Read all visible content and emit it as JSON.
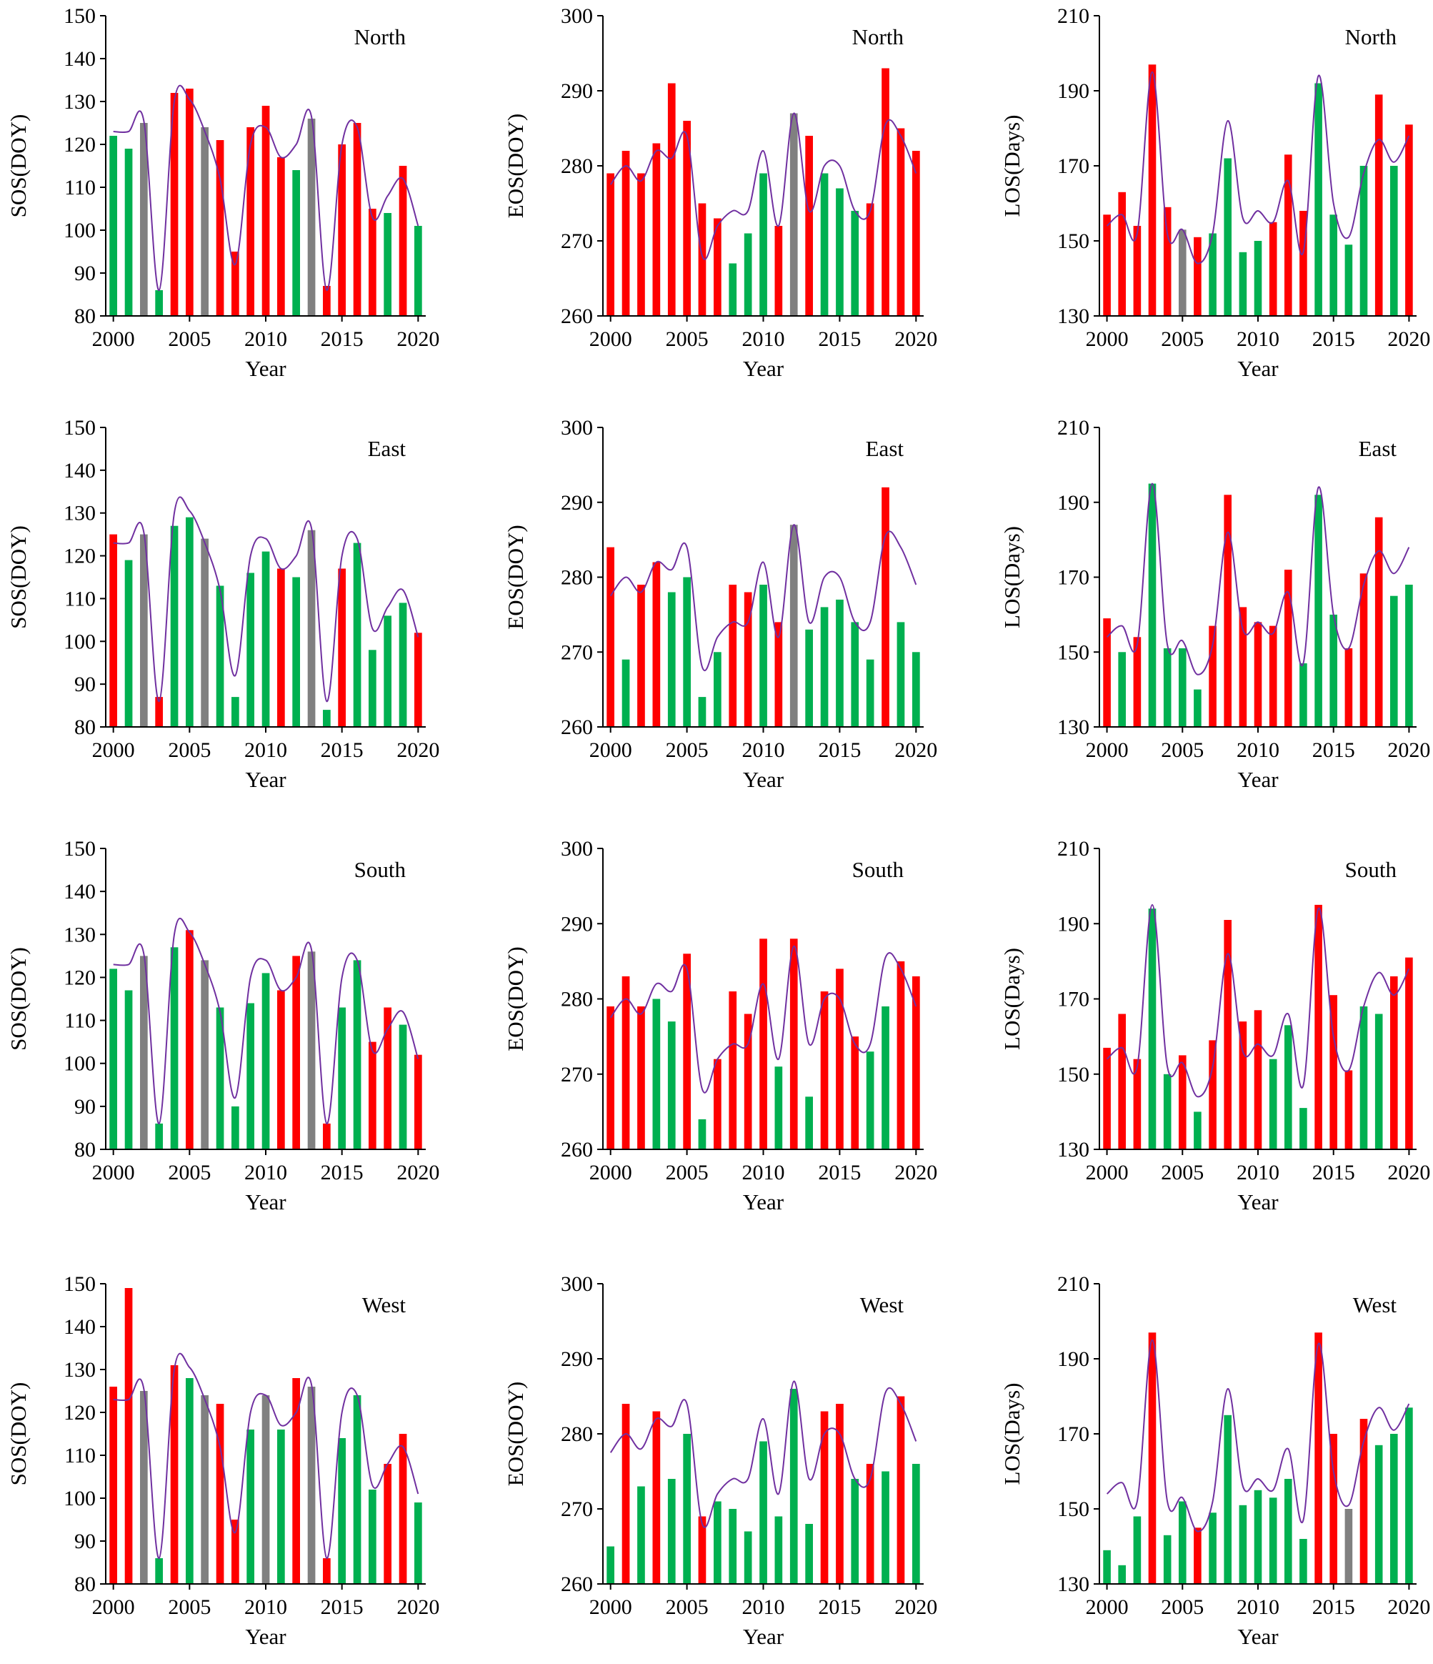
{
  "colors": {
    "red": "#ff0000",
    "green": "#00b050",
    "gray": "#808080",
    "trend": "#7030a0"
  },
  "chart_data": [
    {
      "type": "bar",
      "title": "North",
      "xlabel": "Year",
      "ylabel": "SOS(DOY)",
      "ylim": [
        80,
        150
      ],
      "yticks": [
        80,
        90,
        100,
        110,
        120,
        130,
        140,
        150
      ],
      "xticks": [
        2000,
        2005,
        2010,
        2015,
        2020
      ],
      "categories": [
        2000,
        2001,
        2002,
        2003,
        2004,
        2005,
        2006,
        2007,
        2008,
        2009,
        2010,
        2011,
        2012,
        2013,
        2014,
        2015,
        2016,
        2017,
        2018,
        2019,
        2020
      ],
      "values": [
        122,
        119,
        125,
        86,
        132,
        133,
        124,
        121,
        95,
        124,
        129,
        117,
        114,
        126,
        87,
        120,
        125,
        105,
        104,
        115,
        101
      ],
      "colors": [
        "g",
        "g",
        "k",
        "g",
        "r",
        "r",
        "k",
        "r",
        "r",
        "r",
        "r",
        "r",
        "g",
        "k",
        "r",
        "r",
        "r",
        "r",
        "g",
        "r",
        "g"
      ],
      "trend": [
        123,
        123,
        125.5,
        86,
        130,
        130.5,
        123,
        112,
        92,
        120,
        124,
        117,
        120,
        126.5,
        86,
        120,
        124,
        103,
        108,
        112,
        101
      ]
    },
    {
      "type": "bar",
      "title": "North",
      "xlabel": "Year",
      "ylabel": "EOS(DOY)",
      "ylim": [
        260,
        300
      ],
      "yticks": [
        260,
        270,
        280,
        290,
        300
      ],
      "xticks": [
        2000,
        2005,
        2010,
        2015,
        2020
      ],
      "categories": [
        2000,
        2001,
        2002,
        2003,
        2004,
        2005,
        2006,
        2007,
        2008,
        2009,
        2010,
        2011,
        2012,
        2013,
        2014,
        2015,
        2016,
        2017,
        2018,
        2019,
        2020
      ],
      "values": [
        279,
        282,
        279,
        283,
        291,
        286,
        275,
        273,
        267,
        271,
        279,
        272,
        287,
        284,
        279,
        277,
        274,
        275,
        293,
        285,
        282
      ],
      "colors": [
        "r",
        "r",
        "r",
        "r",
        "r",
        "r",
        "r",
        "r",
        "g",
        "g",
        "g",
        "r",
        "k",
        "r",
        "g",
        "g",
        "g",
        "r",
        "r",
        "r",
        "r"
      ],
      "trend": [
        277.5,
        280,
        278,
        282,
        281,
        284,
        268,
        272,
        274,
        274,
        282,
        272,
        287,
        274,
        280,
        280,
        274,
        274,
        285.5,
        284,
        279
      ]
    },
    {
      "type": "bar",
      "title": "North",
      "xlabel": "Year",
      "ylabel": "LOS(Days)",
      "ylim": [
        130,
        210
      ],
      "yticks": [
        130,
        150,
        170,
        190,
        210
      ],
      "xticks": [
        2000,
        2005,
        2010,
        2015,
        2020
      ],
      "categories": [
        2000,
        2001,
        2002,
        2003,
        2004,
        2005,
        2006,
        2007,
        2008,
        2009,
        2010,
        2011,
        2012,
        2013,
        2014,
        2015,
        2016,
        2017,
        2018,
        2019,
        2020
      ],
      "values": [
        157,
        163,
        154,
        197,
        159,
        153,
        151,
        152,
        172,
        147,
        150,
        155,
        173,
        158,
        192,
        157,
        149,
        170,
        189,
        170,
        181
      ],
      "colors": [
        "r",
        "r",
        "r",
        "r",
        "r",
        "k",
        "r",
        "g",
        "g",
        "g",
        "g",
        "r",
        "r",
        "r",
        "g",
        "g",
        "g",
        "g",
        "r",
        "g",
        "r"
      ],
      "trend": [
        154,
        157,
        152,
        195,
        152,
        153,
        144,
        152,
        182,
        156,
        158,
        155,
        166,
        147,
        194,
        160,
        151,
        168,
        177,
        171,
        178
      ]
    },
    {
      "type": "bar",
      "title": "East",
      "xlabel": "Year",
      "ylabel": "SOS(DOY)",
      "ylim": [
        80,
        150
      ],
      "yticks": [
        80,
        90,
        100,
        110,
        120,
        130,
        140,
        150
      ],
      "xticks": [
        2000,
        2005,
        2010,
        2015,
        2020
      ],
      "categories": [
        2000,
        2001,
        2002,
        2003,
        2004,
        2005,
        2006,
        2007,
        2008,
        2009,
        2010,
        2011,
        2012,
        2013,
        2014,
        2015,
        2016,
        2017,
        2018,
        2019,
        2020
      ],
      "values": [
        125,
        119,
        125,
        87,
        127,
        129,
        124,
        113,
        87,
        116,
        121,
        117,
        115,
        126,
        84,
        117,
        123,
        98,
        106,
        109,
        102
      ],
      "colors": [
        "r",
        "g",
        "k",
        "r",
        "g",
        "g",
        "k",
        "g",
        "g",
        "g",
        "g",
        "r",
        "g",
        "k",
        "g",
        "r",
        "g",
        "g",
        "g",
        "g",
        "r"
      ],
      "trend": [
        123,
        123,
        125.5,
        86,
        130,
        130.5,
        123,
        112,
        92,
        120,
        124,
        117,
        120,
        126.5,
        86,
        120,
        124,
        103,
        108,
        112,
        101
      ]
    },
    {
      "type": "bar",
      "title": "East",
      "xlabel": "Year",
      "ylabel": "EOS(DOY)",
      "ylim": [
        260,
        300
      ],
      "yticks": [
        260,
        270,
        280,
        290,
        300
      ],
      "xticks": [
        2000,
        2005,
        2010,
        2015,
        2020
      ],
      "categories": [
        2000,
        2001,
        2002,
        2003,
        2004,
        2005,
        2006,
        2007,
        2008,
        2009,
        2010,
        2011,
        2012,
        2013,
        2014,
        2015,
        2016,
        2017,
        2018,
        2019,
        2020
      ],
      "values": [
        284,
        269,
        279,
        282,
        278,
        280,
        264,
        270,
        279,
        278,
        279,
        274,
        287,
        273,
        276,
        277,
        274,
        269,
        292,
        274,
        270
      ],
      "colors": [
        "r",
        "g",
        "r",
        "r",
        "g",
        "g",
        "g",
        "g",
        "r",
        "r",
        "g",
        "r",
        "k",
        "g",
        "g",
        "g",
        "g",
        "g",
        "r",
        "g",
        "g"
      ],
      "trend": [
        277.5,
        280,
        278,
        282,
        281,
        284,
        268,
        272,
        274,
        274,
        282,
        272,
        287,
        274,
        280,
        280,
        274,
        274,
        285.5,
        284,
        279
      ]
    },
    {
      "type": "bar",
      "title": "East",
      "xlabel": "Year",
      "ylabel": "LOS(Days)",
      "ylim": [
        130,
        210
      ],
      "yticks": [
        130,
        150,
        170,
        190,
        210
      ],
      "xticks": [
        2000,
        2005,
        2010,
        2015,
        2020
      ],
      "categories": [
        2000,
        2001,
        2002,
        2003,
        2004,
        2005,
        2006,
        2007,
        2008,
        2009,
        2010,
        2011,
        2012,
        2013,
        2014,
        2015,
        2016,
        2017,
        2018,
        2019,
        2020
      ],
      "values": [
        159,
        150,
        154,
        195,
        151,
        151,
        140,
        157,
        192,
        162,
        158,
        157,
        172,
        147,
        192,
        160,
        151,
        171,
        186,
        165,
        168
      ],
      "colors": [
        "r",
        "g",
        "r",
        "g",
        "g",
        "g",
        "g",
        "r",
        "r",
        "r",
        "r",
        "r",
        "r",
        "g",
        "g",
        "g",
        "r",
        "r",
        "r",
        "g",
        "g"
      ],
      "trend": [
        154,
        157,
        152,
        195,
        152,
        153,
        144,
        152,
        182,
        156,
        158,
        155,
        166,
        147,
        194,
        160,
        151,
        168,
        177,
        171,
        178
      ]
    },
    {
      "type": "bar",
      "title": "South",
      "xlabel": "Year",
      "ylabel": "SOS(DOY)",
      "ylim": [
        80,
        150
      ],
      "yticks": [
        80,
        90,
        100,
        110,
        120,
        130,
        140,
        150
      ],
      "xticks": [
        2000,
        2005,
        2010,
        2015,
        2020
      ],
      "categories": [
        2000,
        2001,
        2002,
        2003,
        2004,
        2005,
        2006,
        2007,
        2008,
        2009,
        2010,
        2011,
        2012,
        2013,
        2014,
        2015,
        2016,
        2017,
        2018,
        2019,
        2020
      ],
      "values": [
        122,
        117,
        125,
        86,
        127,
        131,
        124,
        113,
        90,
        114,
        121,
        117,
        125,
        126,
        86,
        113,
        124,
        105,
        113,
        109,
        102
      ],
      "colors": [
        "g",
        "g",
        "k",
        "g",
        "g",
        "r",
        "k",
        "g",
        "g",
        "g",
        "g",
        "r",
        "r",
        "k",
        "r",
        "g",
        "g",
        "r",
        "r",
        "g",
        "r"
      ],
      "trend": [
        123,
        123,
        125.5,
        86,
        130,
        130.5,
        123,
        112,
        92,
        120,
        124,
        117,
        120,
        126.5,
        86,
        120,
        124,
        103,
        108,
        112,
        101
      ]
    },
    {
      "type": "bar",
      "title": "South",
      "xlabel": "Year",
      "ylabel": "EOS(DOY)",
      "ylim": [
        260,
        300
      ],
      "yticks": [
        260,
        270,
        280,
        290,
        300
      ],
      "xticks": [
        2000,
        2005,
        2010,
        2015,
        2020
      ],
      "categories": [
        2000,
        2001,
        2002,
        2003,
        2004,
        2005,
        2006,
        2007,
        2008,
        2009,
        2010,
        2011,
        2012,
        2013,
        2014,
        2015,
        2016,
        2017,
        2018,
        2019,
        2020
      ],
      "values": [
        279,
        283,
        279,
        280,
        277,
        286,
        264,
        272,
        281,
        278,
        288,
        271,
        288,
        267,
        281,
        284,
        275,
        273,
        279,
        285,
        283
      ],
      "colors": [
        "r",
        "r",
        "r",
        "g",
        "g",
        "r",
        "g",
        "r",
        "r",
        "r",
        "r",
        "g",
        "r",
        "g",
        "r",
        "r",
        "r",
        "g",
        "g",
        "r",
        "r"
      ],
      "trend": [
        277.5,
        280,
        278,
        282,
        281,
        284,
        268,
        272,
        274,
        274,
        282,
        272,
        287,
        274,
        280,
        280,
        274,
        274,
        285.5,
        284,
        279
      ]
    },
    {
      "type": "bar",
      "title": "South",
      "xlabel": "Year",
      "ylabel": "LOS(Days)",
      "ylim": [
        130,
        210
      ],
      "yticks": [
        130,
        150,
        170,
        190,
        210
      ],
      "xticks": [
        2000,
        2005,
        2010,
        2015,
        2020
      ],
      "categories": [
        2000,
        2001,
        2002,
        2003,
        2004,
        2005,
        2006,
        2007,
        2008,
        2009,
        2010,
        2011,
        2012,
        2013,
        2014,
        2015,
        2016,
        2017,
        2018,
        2019,
        2020
      ],
      "values": [
        157,
        166,
        154,
        194,
        150,
        155,
        140,
        159,
        191,
        164,
        167,
        154,
        163,
        141,
        195,
        171,
        151,
        168,
        166,
        176,
        181
      ],
      "colors": [
        "r",
        "r",
        "r",
        "g",
        "g",
        "r",
        "g",
        "r",
        "r",
        "r",
        "r",
        "g",
        "g",
        "g",
        "r",
        "r",
        "r",
        "g",
        "g",
        "r",
        "r"
      ],
      "trend": [
        154,
        157,
        152,
        195,
        152,
        153,
        144,
        152,
        182,
        156,
        158,
        155,
        166,
        147,
        194,
        160,
        151,
        168,
        177,
        171,
        178
      ]
    },
    {
      "type": "bar",
      "title": "West",
      "xlabel": "Year",
      "ylabel": "SOS(DOY)",
      "ylim": [
        80,
        150
      ],
      "yticks": [
        80,
        90,
        100,
        110,
        120,
        130,
        140,
        150
      ],
      "xticks": [
        2000,
        2005,
        2010,
        2015,
        2020
      ],
      "categories": [
        2000,
        2001,
        2002,
        2003,
        2004,
        2005,
        2006,
        2007,
        2008,
        2009,
        2010,
        2011,
        2012,
        2013,
        2014,
        2015,
        2016,
        2017,
        2018,
        2019,
        2020
      ],
      "values": [
        126,
        149,
        125,
        86,
        131,
        128,
        124,
        122,
        95,
        116,
        124,
        116,
        128,
        126,
        86,
        114,
        124,
        102,
        108,
        115,
        99
      ],
      "colors": [
        "r",
        "r",
        "k",
        "g",
        "r",
        "g",
        "k",
        "r",
        "r",
        "g",
        "k",
        "g",
        "r",
        "k",
        "r",
        "g",
        "g",
        "g",
        "r",
        "r",
        "g"
      ],
      "trend": [
        123,
        123,
        125.5,
        86,
        130,
        130.5,
        123,
        112,
        92,
        120,
        124,
        117,
        120,
        126.5,
        86,
        120,
        124,
        103,
        108,
        112,
        101
      ]
    },
    {
      "type": "bar",
      "title": "West",
      "xlabel": "Year",
      "ylabel": "EOS(DOY)",
      "ylim": [
        260,
        300
      ],
      "yticks": [
        260,
        270,
        280,
        290,
        300
      ],
      "xticks": [
        2000,
        2005,
        2010,
        2015,
        2020
      ],
      "categories": [
        2000,
        2001,
        2002,
        2003,
        2004,
        2005,
        2006,
        2007,
        2008,
        2009,
        2010,
        2011,
        2012,
        2013,
        2014,
        2015,
        2016,
        2017,
        2018,
        2019,
        2020
      ],
      "values": [
        265,
        284,
        273,
        283,
        274,
        280,
        269,
        271,
        270,
        267,
        279,
        269,
        286,
        268,
        283,
        284,
        274,
        276,
        275,
        285,
        276
      ],
      "colors": [
        "g",
        "r",
        "g",
        "r",
        "g",
        "g",
        "r",
        "g",
        "g",
        "g",
        "g",
        "g",
        "g",
        "g",
        "r",
        "r",
        "g",
        "r",
        "g",
        "r",
        "g"
      ],
      "trend": [
        277.5,
        280,
        278,
        282,
        281,
        284,
        268,
        272,
        274,
        274,
        282,
        272,
        287,
        274,
        280,
        280,
        274,
        274,
        285.5,
        284,
        279
      ]
    },
    {
      "type": "bar",
      "title": "West",
      "xlabel": "Year",
      "ylabel": "LOS(Days)",
      "ylim": [
        130,
        210
      ],
      "yticks": [
        130,
        150,
        170,
        190,
        210
      ],
      "xticks": [
        2000,
        2005,
        2010,
        2015,
        2020
      ],
      "categories": [
        2000,
        2001,
        2002,
        2003,
        2004,
        2005,
        2006,
        2007,
        2008,
        2009,
        2010,
        2011,
        2012,
        2013,
        2014,
        2015,
        2016,
        2017,
        2018,
        2019,
        2020
      ],
      "values": [
        139,
        135,
        148,
        197,
        143,
        152,
        145,
        149,
        175,
        151,
        155,
        153,
        158,
        142,
        197,
        170,
        150,
        174,
        167,
        170,
        177
      ],
      "colors": [
        "g",
        "g",
        "g",
        "r",
        "g",
        "g",
        "r",
        "g",
        "g",
        "g",
        "g",
        "g",
        "g",
        "g",
        "r",
        "r",
        "k",
        "r",
        "g",
        "g",
        "g"
      ],
      "trend": [
        154,
        157,
        152,
        195,
        152,
        153,
        144,
        152,
        182,
        156,
        158,
        155,
        166,
        147,
        194,
        160,
        151,
        168,
        177,
        171,
        178
      ]
    }
  ]
}
